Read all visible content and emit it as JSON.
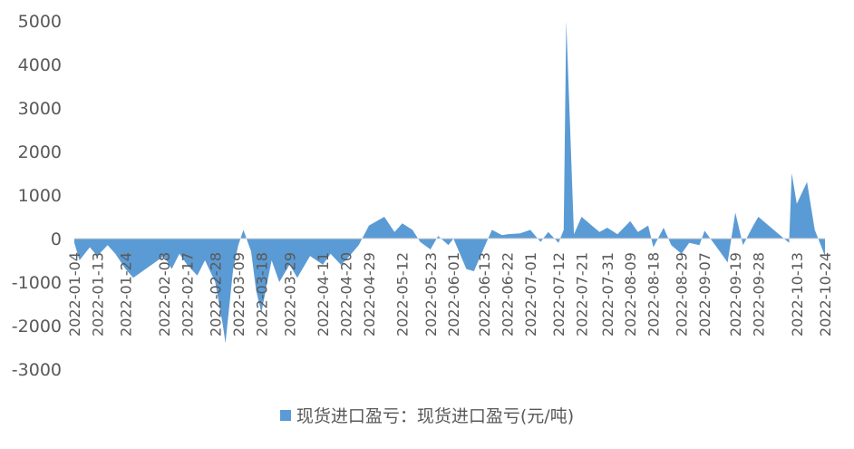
{
  "chart_data": {
    "type": "area",
    "title": "",
    "xlabel": "",
    "ylabel": "",
    "ylim": [
      -3000,
      5000
    ],
    "y_ticks": [
      5000,
      4000,
      3000,
      2000,
      1000,
      0,
      -1000,
      -2000,
      -3000
    ],
    "x_tick_labels": [
      "2022-01-04",
      "2022-01-13",
      "2022-01-24",
      "2022-02-08",
      "2022-02-17",
      "2022-02-28",
      "2022-03-09",
      "2022-03-18",
      "2022-03-29",
      "2022-04-11",
      "2022-04-20",
      "2022-04-29",
      "2022-05-12",
      "2022-05-23",
      "2022-06-01",
      "2022-06-13",
      "2022-06-22",
      "2022-07-01",
      "2022-07-12",
      "2022-07-21",
      "2022-07-31",
      "2022-08-09",
      "2022-08-18",
      "2022-08-29",
      "2022-09-07",
      "2022-09-19",
      "2022-09-28",
      "2022-10-13",
      "2022-10-24"
    ],
    "grid": false,
    "legend_position": "bottom",
    "colors": {
      "series": "#5B9BD5",
      "axis": "#D9D9D9",
      "text": "#595959"
    },
    "series": [
      {
        "name": "现货进口盈亏：现货进口盈亏(元/吨)",
        "x": [
          "2022-01-04",
          "2022-01-06",
          "2022-01-10",
          "2022-01-13",
          "2022-01-17",
          "2022-01-20",
          "2022-01-24",
          "2022-01-27",
          "2022-02-08",
          "2022-02-11",
          "2022-02-14",
          "2022-02-17",
          "2022-02-21",
          "2022-02-24",
          "2022-02-28",
          "2022-03-03",
          "2022-03-04",
          "2022-03-07",
          "2022-03-09",
          "2022-03-11",
          "2022-03-14",
          "2022-03-16",
          "2022-03-18",
          "2022-03-22",
          "2022-03-25",
          "2022-03-29",
          "2022-04-01",
          "2022-04-06",
          "2022-04-11",
          "2022-04-14",
          "2022-04-18",
          "2022-04-20",
          "2022-04-25",
          "2022-04-29",
          "2022-05-05",
          "2022-05-09",
          "2022-05-12",
          "2022-05-16",
          "2022-05-19",
          "2022-05-23",
          "2022-05-26",
          "2022-05-30",
          "2022-06-01",
          "2022-06-06",
          "2022-06-09",
          "2022-06-13",
          "2022-06-16",
          "2022-06-20",
          "2022-06-22",
          "2022-06-27",
          "2022-07-01",
          "2022-07-05",
          "2022-07-08",
          "2022-07-12",
          "2022-07-14",
          "2022-07-15",
          "2022-07-18",
          "2022-07-21",
          "2022-07-25",
          "2022-07-28",
          "2022-07-31",
          "2022-08-04",
          "2022-08-09",
          "2022-08-12",
          "2022-08-16",
          "2022-08-18",
          "2022-08-22",
          "2022-08-25",
          "2022-08-29",
          "2022-09-01",
          "2022-09-05",
          "2022-09-07",
          "2022-09-13",
          "2022-09-16",
          "2022-09-19",
          "2022-09-22",
          "2022-09-26",
          "2022-09-28",
          "2022-10-10",
          "2022-10-11",
          "2022-10-13",
          "2022-10-17",
          "2022-10-20",
          "2022-10-24"
        ],
        "values": [
          -100,
          -500,
          -200,
          -400,
          -150,
          -350,
          -700,
          -900,
          -400,
          -700,
          -350,
          -600,
          -850,
          -500,
          -1000,
          -2000,
          -2400,
          -700,
          -150,
          200,
          -300,
          -1200,
          -1700,
          -500,
          -1000,
          -600,
          -900,
          -400,
          -600,
          -350,
          -600,
          -500,
          -150,
          300,
          500,
          150,
          350,
          200,
          -80,
          -250,
          60,
          -150,
          0,
          -700,
          -750,
          -200,
          200,
          80,
          100,
          120,
          200,
          -80,
          150,
          -100,
          200,
          5000,
          100,
          500,
          300,
          150,
          250,
          100,
          400,
          150,
          300,
          -200,
          250,
          -150,
          -350,
          -100,
          -150,
          180,
          -300,
          -550,
          600,
          -150,
          300,
          500,
          -100,
          1500,
          800,
          1300,
          200,
          -400
        ]
      }
    ]
  }
}
